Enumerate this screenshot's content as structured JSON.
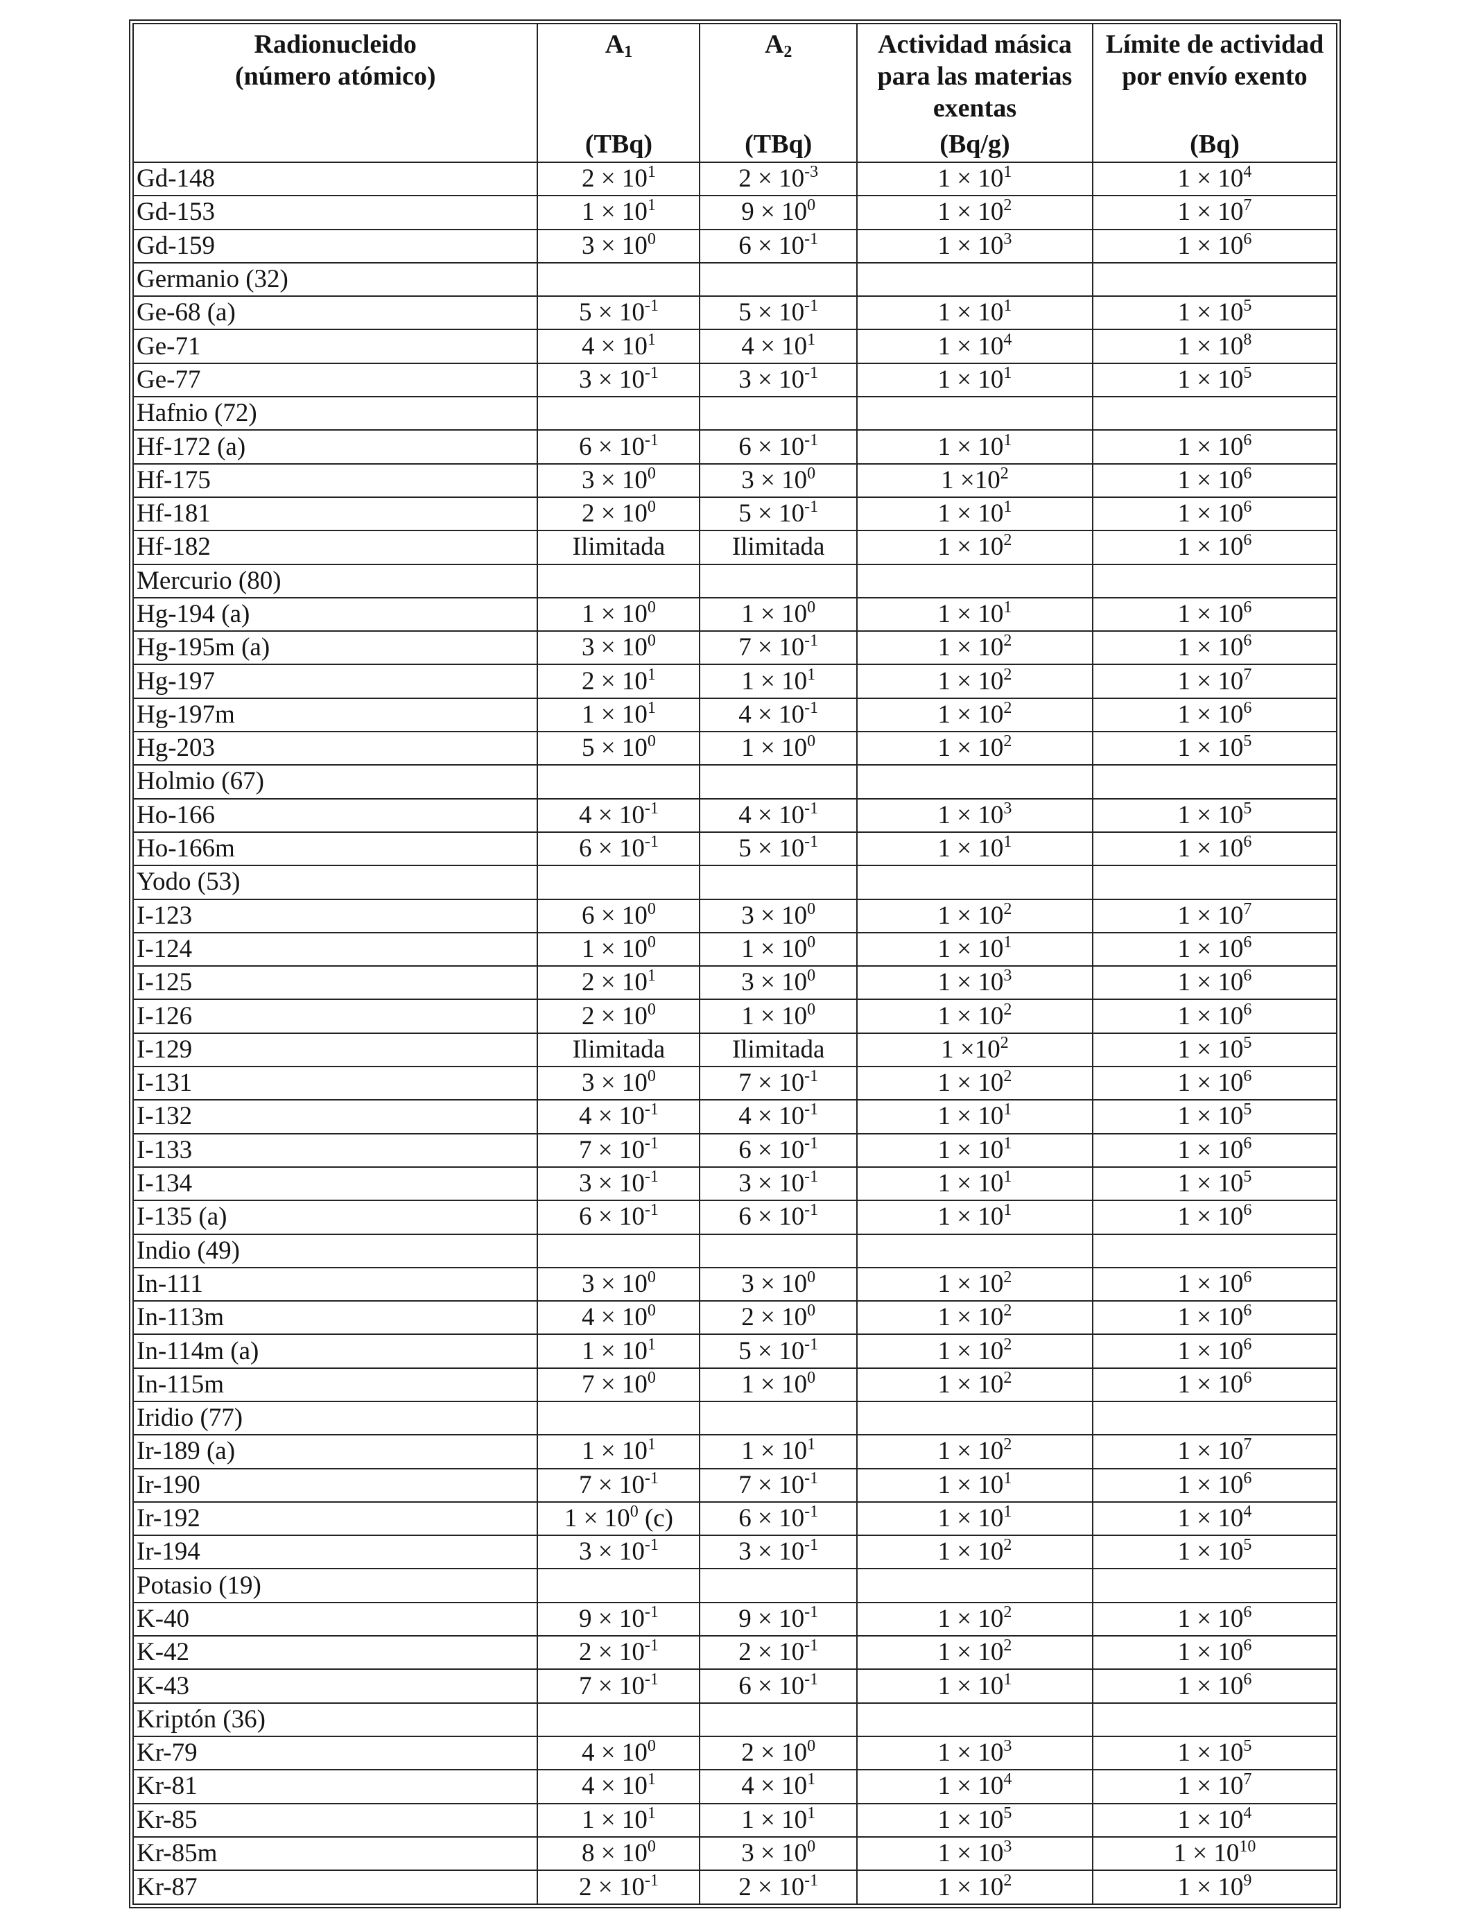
{
  "header": {
    "radionuclide": [
      "Radionucleido",
      "(número atómico)"
    ],
    "a1": {
      "symbol": "A",
      "sub": "1",
      "unit": "(TBq)"
    },
    "a2": {
      "symbol": "A",
      "sub": "2",
      "unit": "(TBq)"
    },
    "mass_activity": {
      "lines": [
        "Actividad másica",
        "para las materias",
        "exentas"
      ],
      "unit": "(Bq/g)"
    },
    "consignment_limit": {
      "lines": [
        "Límite de actividad",
        "por envío exento"
      ],
      "unit": "(Bq)"
    }
  },
  "rows": [
    {
      "name": "Gd-148",
      "a1": [
        "2 × 10",
        "1",
        ""
      ],
      "a2": [
        "2 × 10",
        "-3",
        ""
      ],
      "mass": [
        "1 × 10",
        "1"
      ],
      "limit": [
        "1 × 10",
        "4"
      ]
    },
    {
      "name": "Gd-153",
      "a1": [
        "1 × 10",
        "1",
        ""
      ],
      "a2": [
        "9 × 10",
        "0",
        ""
      ],
      "mass": [
        "1 × 10",
        "2"
      ],
      "limit": [
        "1 × 10",
        "7"
      ]
    },
    {
      "name": "Gd-159",
      "a1": [
        "3 × 10",
        "0",
        ""
      ],
      "a2": [
        "6 × 10",
        "-1",
        ""
      ],
      "mass": [
        "1 × 10",
        "3"
      ],
      "limit": [
        "1 × 10",
        "6"
      ]
    },
    {
      "name": "Germanio (32)",
      "group": true
    },
    {
      "name": "Ge-68 (a)",
      "a1": [
        "5 × 10",
        "-1",
        ""
      ],
      "a2": [
        "5 × 10",
        "-1",
        ""
      ],
      "mass": [
        "1 × 10",
        "1"
      ],
      "limit": [
        "1 × 10",
        "5"
      ]
    },
    {
      "name": "Ge-71",
      "a1": [
        "4 × 10",
        "1",
        ""
      ],
      "a2": [
        "4 × 10",
        "1",
        ""
      ],
      "mass": [
        "1 × 10",
        "4"
      ],
      "limit": [
        "1 × 10",
        "8"
      ]
    },
    {
      "name": "Ge-77",
      "a1": [
        "3 × 10",
        "-1",
        ""
      ],
      "a2": [
        "3 × 10",
        "-1",
        ""
      ],
      "mass": [
        "1 × 10",
        "1"
      ],
      "limit": [
        "1 × 10",
        "5"
      ]
    },
    {
      "name": "Hafnio (72)",
      "group": true
    },
    {
      "name": "Hf-172 (a)",
      "a1": [
        "6 × 10",
        "-1",
        ""
      ],
      "a2": [
        "6 × 10",
        "-1",
        ""
      ],
      "mass": [
        "1 × 10",
        "1"
      ],
      "limit": [
        "1 × 10",
        "6"
      ]
    },
    {
      "name": "Hf-175",
      "a1": [
        "3 × 10",
        "0",
        ""
      ],
      "a2": [
        "3 × 10",
        "0",
        ""
      ],
      "mass": [
        "1 ×10",
        "2"
      ],
      "limit": [
        "1 × 10",
        "6"
      ]
    },
    {
      "name": "Hf-181",
      "a1": [
        "2 × 10",
        "0",
        ""
      ],
      "a2": [
        "5 × 10",
        "-1",
        ""
      ],
      "mass": [
        "1 × 10",
        "1"
      ],
      "limit": [
        "1 × 10",
        "6"
      ]
    },
    {
      "name": "Hf-182",
      "a1": [
        "Ilimitada",
        "",
        ""
      ],
      "a2": [
        "Ilimitada",
        "",
        ""
      ],
      "mass": [
        "1 × 10",
        "2"
      ],
      "limit": [
        "1 × 10",
        "6"
      ]
    },
    {
      "name": "Mercurio (80)",
      "group": true
    },
    {
      "name": "Hg-194 (a)",
      "a1": [
        "1 × 10",
        "0",
        ""
      ],
      "a2": [
        "1 × 10",
        "0",
        ""
      ],
      "mass": [
        "1 × 10",
        "1"
      ],
      "limit": [
        "1 × 10",
        "6"
      ]
    },
    {
      "name": "Hg-195m (a)",
      "a1": [
        "3 × 10",
        "0",
        ""
      ],
      "a2": [
        "7 × 10",
        "-1",
        ""
      ],
      "mass": [
        "1 × 10",
        "2"
      ],
      "limit": [
        "1 × 10",
        "6"
      ]
    },
    {
      "name": "Hg-197",
      "a1": [
        "2 × 10",
        "1",
        ""
      ],
      "a2": [
        "1 × 10",
        "1",
        ""
      ],
      "mass": [
        "1 × 10",
        "2"
      ],
      "limit": [
        "1 × 10",
        "7"
      ]
    },
    {
      "name": "Hg-197m",
      "a1": [
        "1 × 10",
        "1",
        ""
      ],
      "a2": [
        "4 × 10",
        "-1",
        ""
      ],
      "mass": [
        "1 × 10",
        "2"
      ],
      "limit": [
        "1 × 10",
        "6"
      ]
    },
    {
      "name": "Hg-203",
      "a1": [
        "5 × 10",
        "0",
        ""
      ],
      "a2": [
        "1 × 10",
        "0",
        ""
      ],
      "mass": [
        "1 × 10",
        "2"
      ],
      "limit": [
        "1 × 10",
        "5"
      ]
    },
    {
      "name": "Holmio (67)",
      "group": true
    },
    {
      "name": "Ho-166",
      "a1": [
        "4 × 10",
        "-1",
        ""
      ],
      "a2": [
        "4 × 10",
        "-1",
        ""
      ],
      "mass": [
        "1 × 10",
        "3"
      ],
      "limit": [
        "1 × 10",
        "5"
      ]
    },
    {
      "name": "Ho-166m",
      "a1": [
        "6 × 10",
        "-1",
        ""
      ],
      "a2": [
        "5 × 10",
        "-1",
        ""
      ],
      "mass": [
        "1 × 10",
        "1"
      ],
      "limit": [
        "1 × 10",
        "6"
      ]
    },
    {
      "name": "Yodo (53)",
      "group": true
    },
    {
      "name": "I-123",
      "a1": [
        "6 × 10",
        "0",
        ""
      ],
      "a2": [
        "3 × 10",
        "0",
        ""
      ],
      "mass": [
        "1 × 10",
        "2"
      ],
      "limit": [
        "1 × 10",
        "7"
      ]
    },
    {
      "name": "I-124",
      "a1": [
        "1 × 10",
        "0",
        ""
      ],
      "a2": [
        "1 × 10",
        "0",
        ""
      ],
      "mass": [
        "1 × 10",
        "1"
      ],
      "limit": [
        "1 × 10",
        "6"
      ]
    },
    {
      "name": "I-125",
      "a1": [
        "2 × 10",
        "1",
        ""
      ],
      "a2": [
        "3 × 10",
        "0",
        ""
      ],
      "mass": [
        "1 × 10",
        "3"
      ],
      "limit": [
        "1 × 10",
        "6"
      ]
    },
    {
      "name": "I-126",
      "a1": [
        "2 × 10",
        "0",
        ""
      ],
      "a2": [
        "1 × 10",
        "0",
        ""
      ],
      "mass": [
        "1 × 10",
        "2"
      ],
      "limit": [
        "1 × 10",
        "6"
      ]
    },
    {
      "name": "I-129",
      "a1": [
        "Ilimitada",
        "",
        ""
      ],
      "a2": [
        "Ilimitada",
        "",
        ""
      ],
      "mass": [
        "1 ×10",
        "2"
      ],
      "limit": [
        "1 × 10",
        "5"
      ]
    },
    {
      "name": "I-131",
      "a1": [
        "3 × 10",
        "0",
        ""
      ],
      "a2": [
        "7 × 10",
        "-1",
        ""
      ],
      "mass": [
        "1 × 10",
        "2"
      ],
      "limit": [
        "1 × 10",
        "6"
      ]
    },
    {
      "name": "I-132",
      "a1": [
        "4 × 10",
        "-1",
        ""
      ],
      "a2": [
        "4 × 10",
        "-1",
        ""
      ],
      "mass": [
        "1 × 10",
        "1"
      ],
      "limit": [
        "1 × 10",
        "5"
      ]
    },
    {
      "name": "I-133",
      "a1": [
        "7 × 10",
        "-1",
        ""
      ],
      "a2": [
        "6 × 10",
        "-1",
        ""
      ],
      "mass": [
        "1 × 10",
        "1"
      ],
      "limit": [
        "1 × 10",
        "6"
      ]
    },
    {
      "name": "I-134",
      "a1": [
        "3 × 10",
        "-1",
        ""
      ],
      "a2": [
        "3 × 10",
        "-1",
        ""
      ],
      "mass": [
        "1 × 10",
        "1"
      ],
      "limit": [
        "1 × 10",
        "5"
      ]
    },
    {
      "name": "I-135 (a)",
      "a1": [
        "6 × 10",
        "-1",
        ""
      ],
      "a2": [
        "6 × 10",
        "-1",
        ""
      ],
      "mass": [
        "1 × 10",
        "1"
      ],
      "limit": [
        "1 × 10",
        "6"
      ]
    },
    {
      "name": "Indio (49)",
      "group": true
    },
    {
      "name": "In-111",
      "a1": [
        "3 × 10",
        "0",
        ""
      ],
      "a2": [
        "3 × 10",
        "0",
        ""
      ],
      "mass": [
        "1 × 10",
        "2"
      ],
      "limit": [
        "1 × 10",
        "6"
      ]
    },
    {
      "name": "In-113m",
      "a1": [
        "4 × 10",
        "0",
        ""
      ],
      "a2": [
        "2 × 10",
        "0",
        ""
      ],
      "mass": [
        "1 × 10",
        "2"
      ],
      "limit": [
        "1 × 10",
        "6"
      ]
    },
    {
      "name": "In-114m (a)",
      "a1": [
        "1 × 10",
        "1",
        ""
      ],
      "a2": [
        "5 × 10",
        "-1",
        ""
      ],
      "mass": [
        "1 × 10",
        "2"
      ],
      "limit": [
        "1 × 10",
        "6"
      ]
    },
    {
      "name": "In-115m",
      "a1": [
        "7 × 10",
        "0",
        ""
      ],
      "a2": [
        "1 × 10",
        "0",
        ""
      ],
      "mass": [
        "1 × 10",
        "2"
      ],
      "limit": [
        "1 × 10",
        "6"
      ]
    },
    {
      "name": "Iridio (77)",
      "group": true
    },
    {
      "name": "Ir-189 (a)",
      "a1": [
        "1 × 10",
        "1",
        ""
      ],
      "a2": [
        "1 × 10",
        "1",
        ""
      ],
      "mass": [
        "1 × 10",
        "2"
      ],
      "limit": [
        "1 × 10",
        "7"
      ]
    },
    {
      "name": "Ir-190",
      "a1": [
        "7 × 10",
        "-1",
        ""
      ],
      "a2": [
        "7 × 10",
        "-1",
        ""
      ],
      "mass": [
        "1 × 10",
        "1"
      ],
      "limit": [
        "1 × 10",
        "6"
      ]
    },
    {
      "name": "Ir-192",
      "a1": [
        "1 × 10",
        "0",
        " (c)"
      ],
      "a2": [
        "6 × 10",
        "-1",
        ""
      ],
      "mass": [
        "1 × 10",
        "1"
      ],
      "limit": [
        "1 × 10",
        "4"
      ]
    },
    {
      "name": "Ir-194",
      "a1": [
        "3 × 10",
        "-1",
        ""
      ],
      "a2": [
        "3 × 10",
        "-1",
        ""
      ],
      "mass": [
        "1 × 10",
        "2"
      ],
      "limit": [
        "1 × 10",
        "5"
      ]
    },
    {
      "name": "Potasio (19)",
      "group": true
    },
    {
      "name": "K-40",
      "a1": [
        "9 × 10",
        "-1",
        ""
      ],
      "a2": [
        "9 × 10",
        "-1",
        ""
      ],
      "mass": [
        "1 × 10",
        "2"
      ],
      "limit": [
        "1 × 10",
        "6"
      ]
    },
    {
      "name": "K-42",
      "a1": [
        "2 × 10",
        "-1",
        ""
      ],
      "a2": [
        "2 × 10",
        "-1",
        ""
      ],
      "mass": [
        "1 × 10",
        "2"
      ],
      "limit": [
        "1 × 10",
        "6"
      ]
    },
    {
      "name": "K-43",
      "a1": [
        "7 × 10",
        "-1",
        ""
      ],
      "a2": [
        "6 × 10",
        "-1",
        ""
      ],
      "mass": [
        "1 × 10",
        "1"
      ],
      "limit": [
        "1 × 10",
        "6"
      ]
    },
    {
      "name": "Kriptón (36)",
      "group": true
    },
    {
      "name": "Kr-79",
      "a1": [
        "4 × 10",
        "0",
        ""
      ],
      "a2": [
        "2 × 10",
        "0",
        ""
      ],
      "mass": [
        "1 × 10",
        "3"
      ],
      "limit": [
        "1 × 10",
        "5"
      ]
    },
    {
      "name": "Kr-81",
      "a1": [
        "4 × 10",
        "1",
        ""
      ],
      "a2": [
        "4 × 10",
        "1",
        ""
      ],
      "mass": [
        "1 × 10",
        "4"
      ],
      "limit": [
        "1 × 10",
        "7"
      ]
    },
    {
      "name": "Kr-85",
      "a1": [
        "1 × 10",
        "1",
        ""
      ],
      "a2": [
        "1 × 10",
        "1",
        ""
      ],
      "mass": [
        "1 × 10",
        "5"
      ],
      "limit": [
        "1 × 10",
        "4"
      ]
    },
    {
      "name": "Kr-85m",
      "a1": [
        "8 × 10",
        "0",
        ""
      ],
      "a2": [
        "3 × 10",
        "0",
        ""
      ],
      "mass": [
        "1 × 10",
        "3"
      ],
      "limit": [
        "1 × 10",
        "10"
      ]
    },
    {
      "name": "Kr-87",
      "a1": [
        "2 × 10",
        "-1",
        ""
      ],
      "a2": [
        "2 × 10",
        "-1",
        ""
      ],
      "mass": [
        "1 × 10",
        "2"
      ],
      "limit": [
        "1 × 10",
        "9"
      ]
    }
  ]
}
